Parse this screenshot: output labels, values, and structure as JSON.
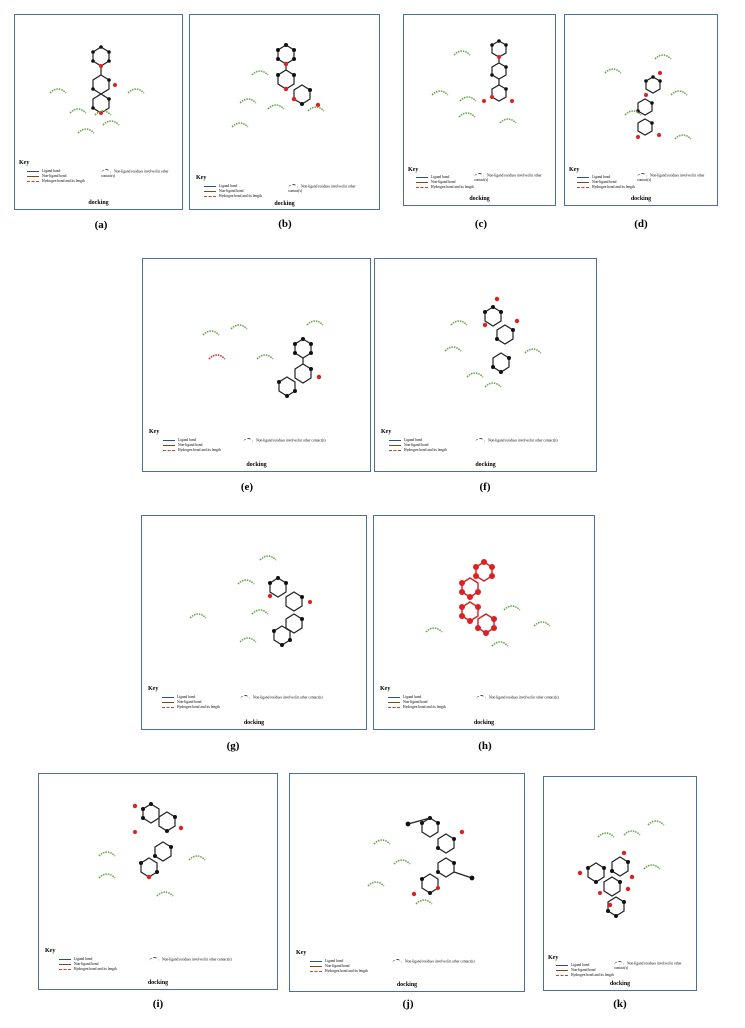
{
  "key": {
    "title": "Key",
    "ligand_bond": "Ligand bond",
    "nonligand_bond": "Non-ligand bond",
    "hbond": "Hydrogen bond and its length",
    "nonbonded": "Non-ligand residues involved in other contact(s)",
    "docking": "docking"
  },
  "captions": [
    "(a)",
    "(b)",
    "(c)",
    "(d)",
    "(e)",
    "(f)",
    "(g)",
    "(h)",
    "(i)",
    "(j)",
    "(k)"
  ],
  "colors": {
    "panel_border": "#4a6fa5",
    "hydrophobic_arc": "#6aa84f",
    "oxygen": "#e02020",
    "carbon": "#1a1a2e"
  }
}
